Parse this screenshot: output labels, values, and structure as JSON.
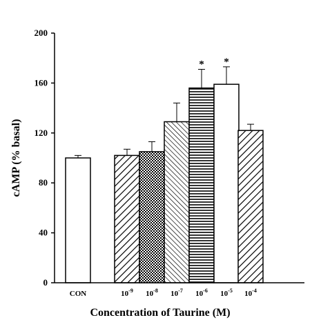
{
  "chart_data": {
    "type": "bar",
    "xlabel": "Concentration of Taurine (M)",
    "ylabel": "cAMP  (% basal)",
    "ylim": [
      0,
      200
    ],
    "yticks": [
      0,
      40,
      80,
      120,
      160,
      200
    ],
    "categories": [
      {
        "base": "CON",
        "exp": ""
      },
      {
        "base": "10",
        "exp": "-9"
      },
      {
        "base": "10",
        "exp": "-8"
      },
      {
        "base": "10",
        "exp": "-7"
      },
      {
        "base": "10",
        "exp": "-6"
      },
      {
        "base": "10",
        "exp": "-5"
      },
      {
        "base": "10",
        "exp": "-4"
      }
    ],
    "values": [
      100,
      102,
      105,
      129,
      156,
      159,
      122
    ],
    "errors": [
      2,
      5,
      8,
      15,
      15,
      14,
      5
    ],
    "patterns": [
      "none",
      "diag-wide",
      "crosshatch",
      "diag-tight",
      "horizontal",
      "none",
      "diag-wide"
    ],
    "significance": [
      "",
      "",
      "",
      "",
      "*",
      "*",
      ""
    ],
    "grid": false
  }
}
